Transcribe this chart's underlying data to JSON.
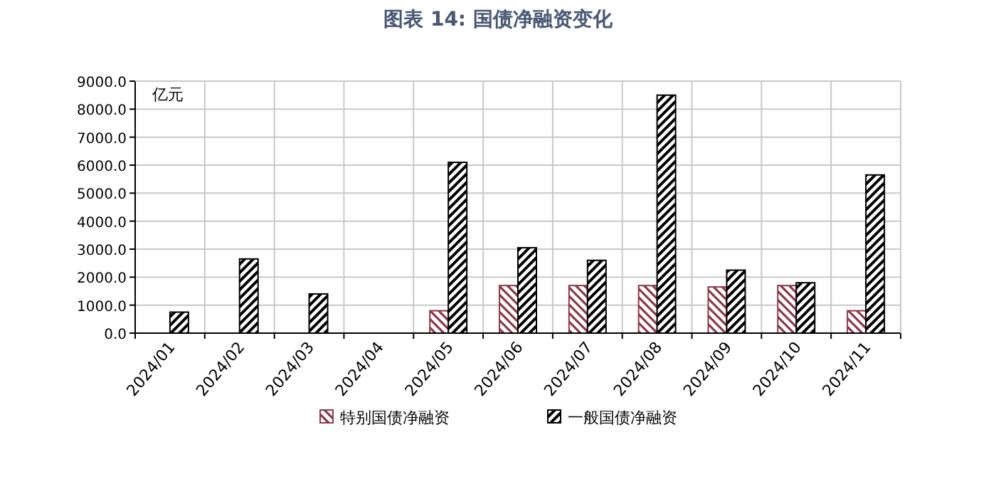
{
  "chart_data": {
    "type": "bar",
    "title": "图表 14: 国债净融资变化",
    "annotations": [
      "亿元"
    ],
    "categories": [
      "2024/01",
      "2024/02",
      "2024/03",
      "2024/04",
      "2024/05",
      "2024/06",
      "2024/07",
      "2024/08",
      "2024/09",
      "2024/10",
      "2024/11"
    ],
    "series": [
      {
        "name": "特别国债净融资",
        "color": "#8b3a4a",
        "values": [
          0,
          0,
          0,
          0,
          800,
          1700,
          1700,
          1700,
          1650,
          1700,
          800
        ]
      },
      {
        "name": "一般国债净融资",
        "color": "#000000",
        "values": [
          750,
          2650,
          1400,
          0,
          6100,
          3050,
          2600,
          8500,
          2250,
          1800,
          5650
        ]
      }
    ],
    "ylim": [
      0,
      9000
    ],
    "yticks": [
      {
        "value": 0,
        "label": "0.0"
      },
      {
        "value": 1000,
        "label": "1000.0"
      },
      {
        "value": 2000,
        "label": "2000.0"
      },
      {
        "value": 3000,
        "label": "3000.0"
      },
      {
        "value": 4000,
        "label": "4000.0"
      },
      {
        "value": 5000,
        "label": "5000.0"
      },
      {
        "value": 6000,
        "label": "6000.0"
      },
      {
        "value": 7000,
        "label": "7000.0"
      },
      {
        "value": 8000,
        "label": "8000.0"
      },
      {
        "value": 9000,
        "label": "9000.0"
      }
    ],
    "grid": true,
    "legend": "bottom"
  }
}
